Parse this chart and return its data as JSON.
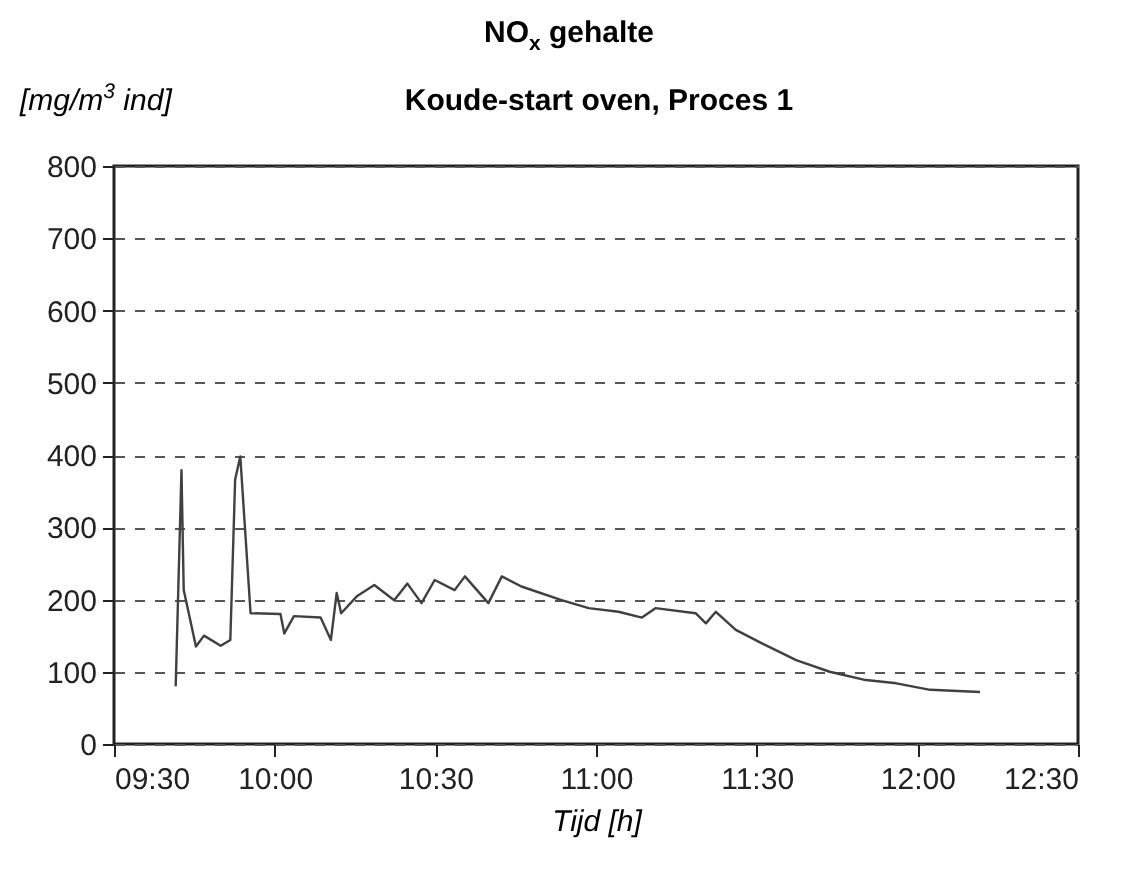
{
  "chart_data": {
    "type": "line",
    "title": "NO$_{x}$ gehalte",
    "subtitle": "Koude-start oven, Proces 1",
    "ylabel": "[mg/m$^{3}$ ind]",
    "xlabel": "Tijd [h]",
    "x": [
      9.692,
      9.71,
      9.717,
      9.755,
      9.78,
      9.832,
      9.862,
      9.877,
      9.893,
      9.925,
      10.018,
      10.03,
      10.06,
      10.143,
      10.175,
      10.193,
      10.207,
      10.257,
      10.31,
      10.372,
      10.413,
      10.457,
      10.498,
      10.56,
      10.592,
      10.665,
      10.707,
      10.768,
      10.893,
      10.977,
      11.07,
      11.143,
      11.185,
      11.31,
      11.342,
      11.373,
      11.435,
      11.518,
      11.623,
      11.727,
      11.833,
      11.935,
      12.04,
      12.195
    ],
    "series": [
      {
        "color": "#404040",
        "values": [
          80,
          379,
          213,
          135,
          150,
          136,
          144,
          366,
          398,
          181,
          180,
          153,
          177,
          175,
          144,
          209,
          181,
          205,
          220,
          199,
          222,
          195,
          227,
          213,
          232,
          195,
          232,
          218,
          199,
          188,
          183,
          175,
          188,
          181,
          167,
          183,
          158,
          139,
          116,
          100,
          89,
          84,
          75,
          72
        ]
      }
    ],
    "xlim": [
      9.5,
      12.5
    ],
    "xticks": [
      {
        "value": 9.5,
        "label": "09:30"
      },
      {
        "value": 10,
        "label": "10:00"
      },
      {
        "value": 10.5,
        "label": "10:30"
      },
      {
        "value": 11,
        "label": "11:00"
      },
      {
        "value": 11.5,
        "label": "11:30"
      },
      {
        "value": 12,
        "label": "12:00"
      },
      {
        "value": 12.5,
        "label": "12:30"
      }
    ],
    "ylim": [
      0,
      800
    ],
    "yticks": [
      0,
      100,
      200,
      300,
      400,
      500,
      600,
      700,
      800
    ],
    "grid": "y",
    "marker": "none",
    "line_style": "solid"
  }
}
